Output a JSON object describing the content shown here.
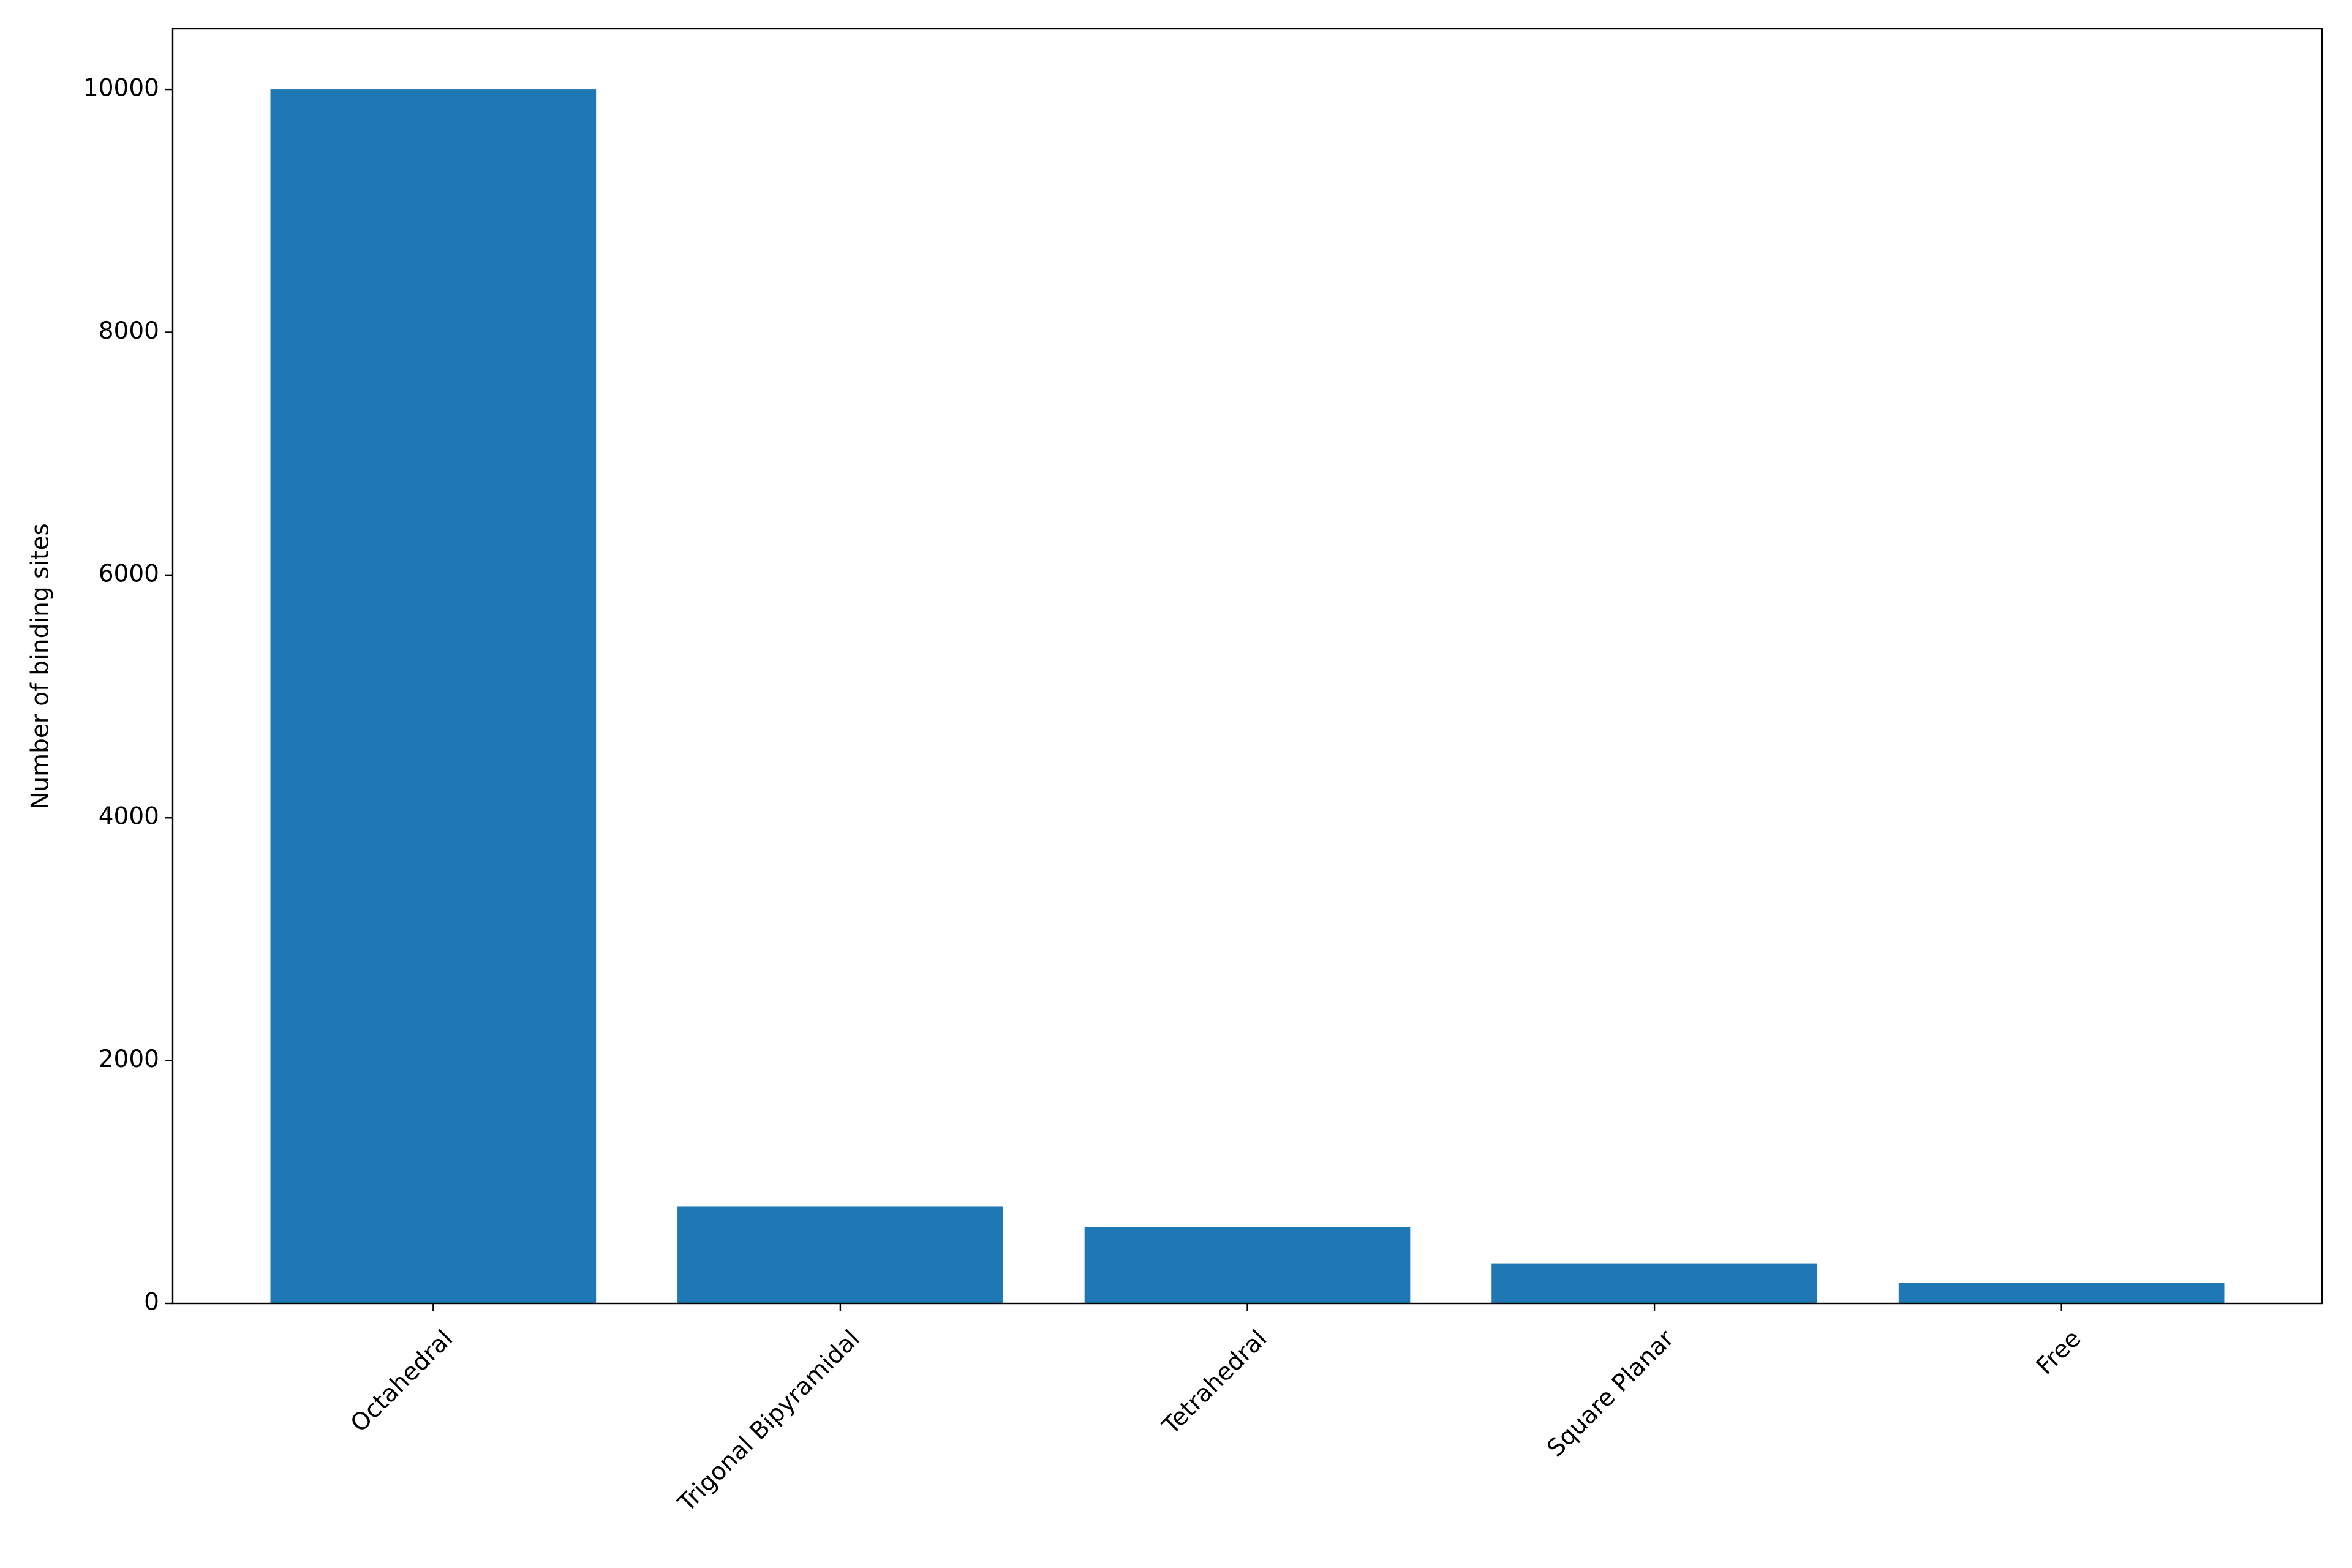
{
  "chart_data": {
    "type": "bar",
    "categories": [
      "Octahedral",
      "Trigonal Bipyramidal",
      "Tetrahedral",
      "Square Planar",
      "Free"
    ],
    "values": [
      10000,
      800,
      630,
      330,
      170
    ],
    "color": "#1f77b4",
    "ylabel": "Number of binding sites",
    "ylim": [
      0,
      10500
    ],
    "yticks": [
      0,
      2000,
      4000,
      6000,
      8000,
      10000
    ],
    "grid": false
  }
}
